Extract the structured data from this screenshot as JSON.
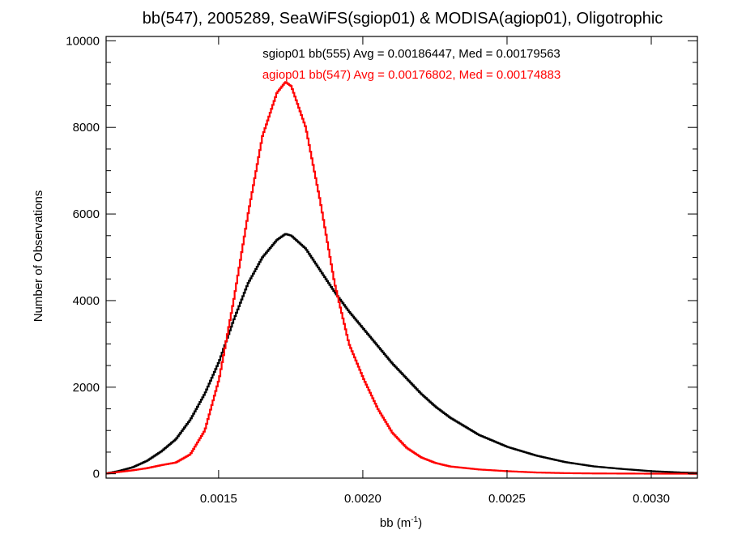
{
  "chart_data": {
    "type": "line",
    "title": "bb(547), 2005289, SeaWiFS(sgiop01) & MODISA(agiop01), Oligotrophic",
    "xlabel": "bb (m",
    "xlabel_exponent": "-1",
    "xlabel_close": ")",
    "ylabel": "Number of Observations",
    "xlim": [
      0.00111,
      0.00316
    ],
    "ylim": [
      -100,
      10100
    ],
    "x_ticks": [
      0.0015,
      0.002,
      0.0025,
      0.003
    ],
    "x_tick_labels": [
      "0.0015",
      "0.0020",
      "0.0025",
      "0.0030"
    ],
    "y_ticks": [
      0,
      2000,
      4000,
      6000,
      8000,
      10000
    ],
    "y_tick_labels": [
      "0",
      "2000",
      "4000",
      "6000",
      "8000",
      "10000"
    ],
    "grid": false,
    "legend_position": "top-center",
    "series": [
      {
        "name": "sgiop01 bb(555) Avg = 0.00186447, Med = 0.00179563",
        "color": "#000000",
        "points": [
          [
            0.00111,
            10
          ],
          [
            0.00115,
            60
          ],
          [
            0.0012,
            150
          ],
          [
            0.00125,
            300
          ],
          [
            0.0013,
            520
          ],
          [
            0.00135,
            800
          ],
          [
            0.0014,
            1250
          ],
          [
            0.00145,
            1850
          ],
          [
            0.0015,
            2600
          ],
          [
            0.00155,
            3550
          ],
          [
            0.0016,
            4400
          ],
          [
            0.00165,
            5000
          ],
          [
            0.0017,
            5400
          ],
          [
            0.00173,
            5540
          ],
          [
            0.00175,
            5500
          ],
          [
            0.0018,
            5200
          ],
          [
            0.00185,
            4700
          ],
          [
            0.0019,
            4200
          ],
          [
            0.00195,
            3750
          ],
          [
            0.002,
            3350
          ],
          [
            0.00205,
            2950
          ],
          [
            0.0021,
            2550
          ],
          [
            0.00215,
            2200
          ],
          [
            0.0022,
            1850
          ],
          [
            0.00225,
            1550
          ],
          [
            0.0023,
            1300
          ],
          [
            0.0024,
            900
          ],
          [
            0.0025,
            620
          ],
          [
            0.0026,
            420
          ],
          [
            0.0027,
            270
          ],
          [
            0.0028,
            170
          ],
          [
            0.0029,
            110
          ],
          [
            0.003,
            60
          ],
          [
            0.0031,
            30
          ],
          [
            0.00316,
            20
          ]
        ]
      },
      {
        "name": "agiop01 bb(547) Avg = 0.00176802, Med = 0.00174883",
        "color": "#ff0000",
        "points": [
          [
            0.00111,
            5
          ],
          [
            0.00115,
            40
          ],
          [
            0.0012,
            80
          ],
          [
            0.00125,
            130
          ],
          [
            0.0013,
            200
          ],
          [
            0.00135,
            260
          ],
          [
            0.0014,
            450
          ],
          [
            0.00145,
            1000
          ],
          [
            0.0015,
            2200
          ],
          [
            0.00155,
            4000
          ],
          [
            0.0016,
            6000
          ],
          [
            0.00165,
            7800
          ],
          [
            0.0017,
            8800
          ],
          [
            0.00173,
            9050
          ],
          [
            0.00175,
            8950
          ],
          [
            0.0018,
            8000
          ],
          [
            0.00185,
            6300
          ],
          [
            0.0019,
            4400
          ],
          [
            0.00195,
            3000
          ],
          [
            0.002,
            2200
          ],
          [
            0.00205,
            1500
          ],
          [
            0.0021,
            950
          ],
          [
            0.00215,
            600
          ],
          [
            0.0022,
            380
          ],
          [
            0.00225,
            250
          ],
          [
            0.0023,
            170
          ],
          [
            0.0024,
            100
          ],
          [
            0.0025,
            60
          ],
          [
            0.0026,
            30
          ],
          [
            0.0027,
            15
          ],
          [
            0.0028,
            8
          ],
          [
            0.003,
            3
          ],
          [
            0.00316,
            1
          ]
        ]
      }
    ]
  }
}
